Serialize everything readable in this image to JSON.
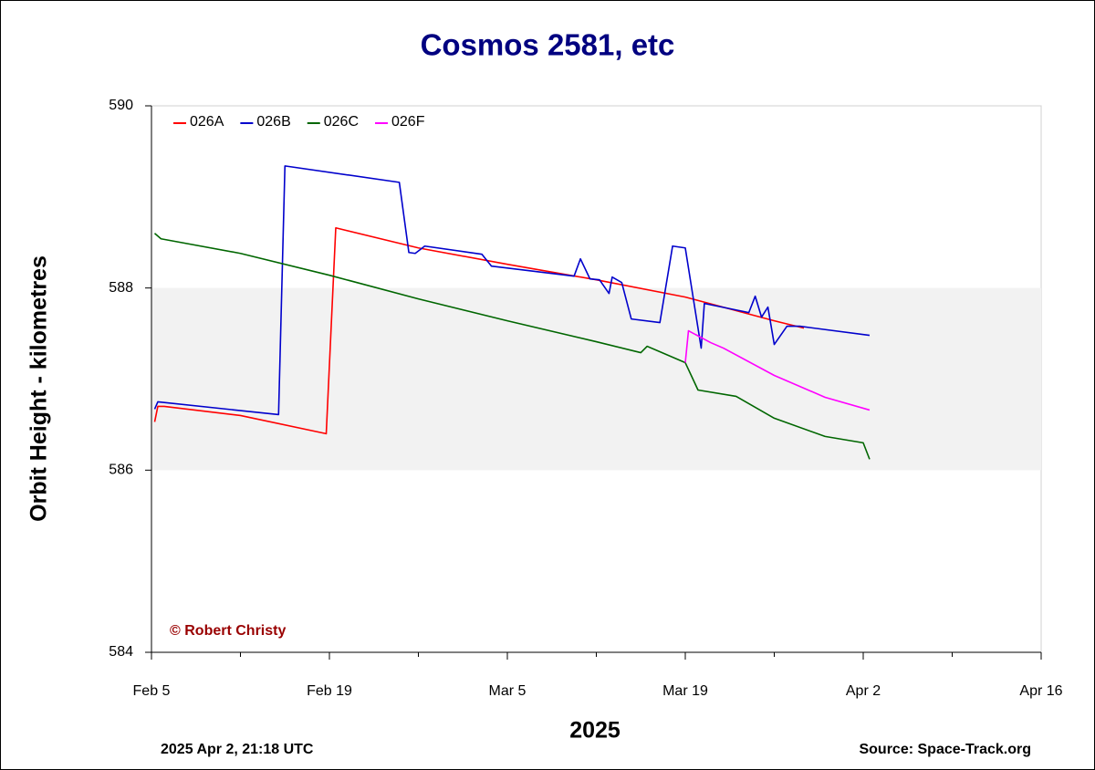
{
  "chart_data": {
    "type": "line",
    "title": "Cosmos 2581, etc",
    "y_label": "Orbit Height - kilometres",
    "x_label": "2025",
    "footer_left": "2025 Apr 2, 21:18 UTC",
    "footer_right": "Source: Space-Track.org",
    "annotation": "© Robert Christy",
    "ylim": [
      584,
      590
    ],
    "yticks": [
      584,
      586,
      588,
      590
    ],
    "band": [
      586,
      588
    ],
    "band_color": "#f2f2f2",
    "xlim": [
      "2025-02-05",
      "2025-04-16"
    ],
    "xticks": [
      {
        "value": "2025-02-05",
        "label": "Feb 5"
      },
      {
        "value": "2025-02-19",
        "label": "Feb 19"
      },
      {
        "value": "2025-03-05",
        "label": "Mar 5"
      },
      {
        "value": "2025-03-19",
        "label": "Mar 19"
      },
      {
        "value": "2025-04-02",
        "label": "Apr 2"
      },
      {
        "value": "2025-04-16",
        "label": "Apr 16"
      }
    ],
    "xminor_ticks": [
      "2025-02-12",
      "2025-02-26",
      "2025-03-12",
      "2025-03-26",
      "2025-04-09"
    ],
    "legend": "top-left",
    "series": [
      {
        "name": "026A",
        "color": "#ff0000",
        "x": [
          "2025-02-05T06:00",
          "2025-02-05T12:00",
          "2025-02-06T00:00",
          "2025-02-12T00:00",
          "2025-02-18T18:00",
          "2025-02-19T12:00",
          "2025-02-26T00:00",
          "2025-03-05T00:00",
          "2025-03-12T00:00",
          "2025-03-19T00:00",
          "2025-03-26T00:00",
          "2025-03-28T08:00"
        ],
        "values": [
          586.53,
          586.7,
          586.7,
          586.6,
          586.4,
          588.66,
          588.44,
          588.26,
          588.09,
          587.9,
          587.64,
          587.56
        ]
      },
      {
        "name": "026B",
        "color": "#0000cc",
        "x": [
          "2025-02-05T06:00",
          "2025-02-05T12:00",
          "2025-02-15T00:00",
          "2025-02-15T12:00",
          "2025-02-24T12:00",
          "2025-02-25T06:00",
          "2025-02-25T18:00",
          "2025-02-26T12:00",
          "2025-03-03T00:00",
          "2025-03-03T18:00",
          "2025-03-10T06:00",
          "2025-03-10T18:00",
          "2025-03-11T12:00",
          "2025-03-12T06:00",
          "2025-03-13T00:00",
          "2025-03-13T06:00",
          "2025-03-14T00:00",
          "2025-03-14T18:00",
          "2025-03-17T00:00",
          "2025-03-18T00:00",
          "2025-03-19T00:00",
          "2025-03-20T06:00",
          "2025-03-20T12:00",
          "2025-03-24T00:00",
          "2025-03-24T12:00",
          "2025-03-25T00:00",
          "2025-03-25T12:00",
          "2025-03-26T00:00",
          "2025-03-27T00:00",
          "2025-03-28T00:00",
          "2025-04-02T12:00"
        ],
        "values": [
          586.67,
          586.75,
          586.61,
          589.34,
          589.16,
          588.39,
          588.38,
          588.46,
          588.37,
          588.24,
          588.13,
          588.32,
          588.1,
          588.09,
          587.94,
          588.12,
          588.06,
          587.66,
          587.62,
          588.46,
          588.44,
          587.34,
          587.83,
          587.73,
          587.91,
          587.68,
          587.79,
          587.38,
          587.58,
          587.58,
          587.48
        ]
      },
      {
        "name": "026C",
        "color": "#006600",
        "x": [
          "2025-02-05T06:00",
          "2025-02-05T18:00",
          "2025-02-12T00:00",
          "2025-02-19T00:00",
          "2025-02-26T00:00",
          "2025-03-05T00:00",
          "2025-03-12T00:00",
          "2025-03-15T12:00",
          "2025-03-16T00:00",
          "2025-03-19T00:00",
          "2025-03-20T00:00",
          "2025-03-23T00:00",
          "2025-03-26T00:00",
          "2025-03-30T00:00",
          "2025-04-02T00:00",
          "2025-04-02T12:00"
        ],
        "values": [
          588.6,
          588.54,
          588.38,
          588.14,
          587.88,
          587.64,
          587.41,
          587.29,
          587.36,
          587.18,
          586.88,
          586.81,
          586.57,
          586.37,
          586.3,
          586.12
        ]
      },
      {
        "name": "026F",
        "color": "#ff00ff",
        "x": [
          "2025-03-19T00:00",
          "2025-03-19T06:00",
          "2025-03-21T00:00",
          "2025-03-22T00:00",
          "2025-03-26T00:00",
          "2025-03-30T00:00",
          "2025-04-02T12:00"
        ],
        "values": [
          587.18,
          587.53,
          587.4,
          587.34,
          587.04,
          586.8,
          586.66
        ]
      }
    ]
  }
}
